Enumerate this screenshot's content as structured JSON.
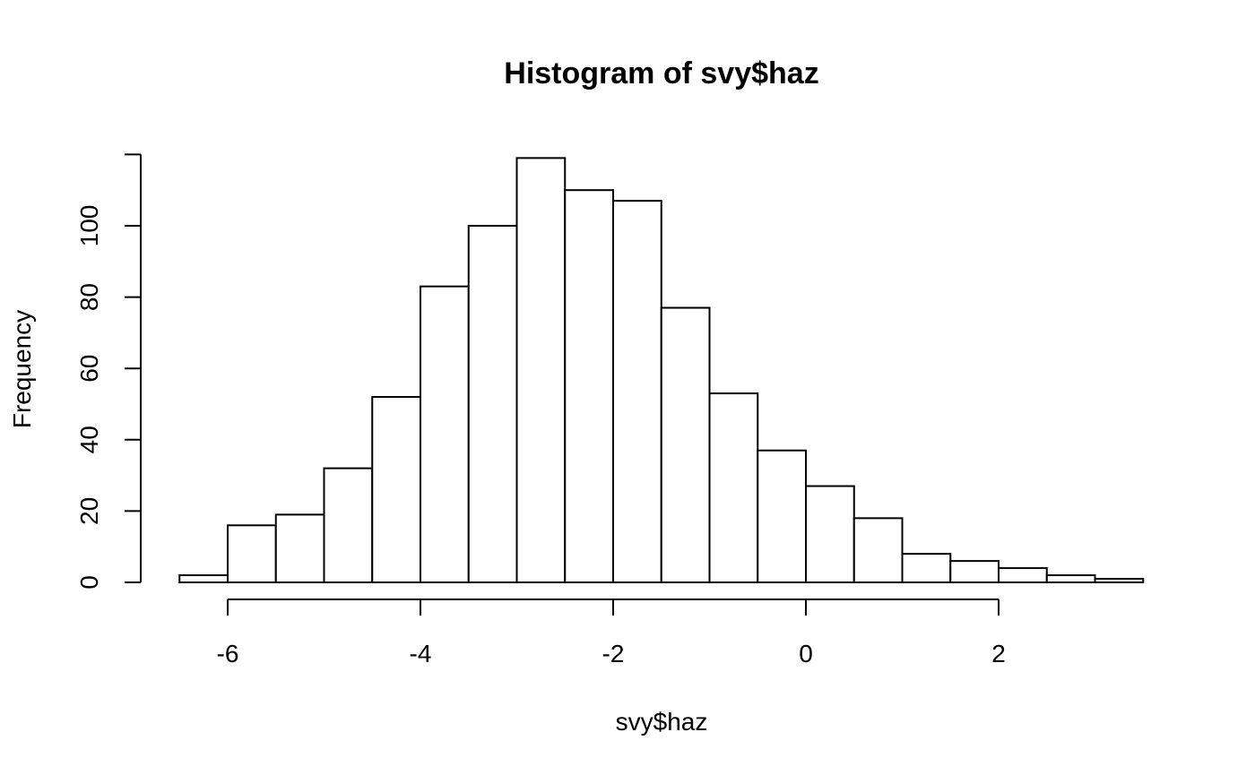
{
  "chart_data": {
    "type": "histogram",
    "title": "Histogram of svy$haz",
    "xlabel": "svy$haz",
    "ylabel": "Frequency",
    "bin_edges": [
      -6.5,
      -6.0,
      -5.5,
      -5.0,
      -4.5,
      -4.0,
      -3.5,
      -3.0,
      -2.5,
      -2.0,
      -1.5,
      -1.0,
      -0.5,
      0.0,
      0.5,
      1.0,
      1.5,
      2.0,
      2.5,
      3.0,
      3.5
    ],
    "values": [
      2,
      16,
      19,
      32,
      52,
      83,
      100,
      119,
      110,
      107,
      77,
      53,
      37,
      27,
      18,
      8,
      6,
      4,
      2,
      1
    ],
    "x_ticks": [
      -6,
      -4,
      -2,
      0,
      2
    ],
    "x_tick_labels": [
      "-6",
      "-4",
      "-2",
      "0",
      "2"
    ],
    "y_ticks": [
      0,
      20,
      40,
      60,
      80,
      100
    ],
    "y_tick_labels": [
      "0",
      "20",
      "40",
      "60",
      "80",
      "100"
    ],
    "xlim": [
      -6.5,
      3.5
    ],
    "ylim": [
      0,
      120
    ],
    "grid": false,
    "bar_fill": "#ffffff",
    "bar_stroke": "#000000"
  }
}
